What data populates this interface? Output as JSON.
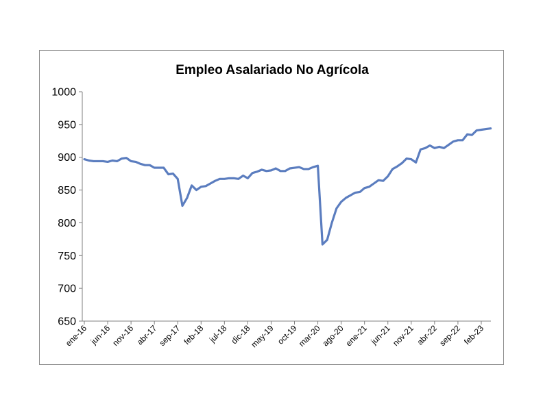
{
  "chart_data": {
    "type": "line",
    "title": "Empleo Asalariado No Agrícola",
    "xlabel": "",
    "ylabel": "",
    "ylim": [
      650,
      1000
    ],
    "yticks": [
      650,
      700,
      750,
      800,
      850,
      900,
      950,
      1000
    ],
    "grid": false,
    "legend": "none",
    "line_color": "#5b7dbf",
    "x_tick_labels": [
      "ene-16",
      "jun-16",
      "nov-16",
      "abr-17",
      "sep-17",
      "feb-18",
      "jul-18",
      "dic-18",
      "may-19",
      "oct-19",
      "mar-20",
      "ago-20",
      "ene-21",
      "jun-21",
      "nov-21",
      "abr-22",
      "sep-22",
      "feb-23"
    ],
    "x": [
      "ene-16",
      "feb-16",
      "mar-16",
      "abr-16",
      "may-16",
      "jun-16",
      "jul-16",
      "ago-16",
      "sep-16",
      "oct-16",
      "nov-16",
      "dic-16",
      "ene-17",
      "feb-17",
      "mar-17",
      "abr-17",
      "may-17",
      "jun-17",
      "jul-17",
      "ago-17",
      "sep-17",
      "oct-17",
      "nov-17",
      "dic-17",
      "ene-18",
      "feb-18",
      "mar-18",
      "abr-18",
      "may-18",
      "jun-18",
      "jul-18",
      "ago-18",
      "sep-18",
      "oct-18",
      "nov-18",
      "dic-18",
      "ene-19",
      "feb-19",
      "mar-19",
      "abr-19",
      "may-19",
      "jun-19",
      "jul-19",
      "ago-19",
      "sep-19",
      "oct-19",
      "nov-19",
      "dic-19",
      "ene-20",
      "feb-20",
      "mar-20",
      "abr-20",
      "may-20",
      "jun-20",
      "jul-20",
      "ago-20",
      "sep-20",
      "oct-20",
      "nov-20",
      "dic-20",
      "ene-21",
      "feb-21",
      "mar-21",
      "abr-21",
      "may-21",
      "jun-21",
      "jul-21",
      "ago-21",
      "sep-21",
      "oct-21",
      "nov-21",
      "dic-21",
      "ene-22",
      "feb-22",
      "mar-22",
      "abr-22",
      "may-22",
      "jun-22",
      "jul-22",
      "ago-22",
      "sep-22",
      "oct-22",
      "nov-22",
      "dic-22",
      "ene-23",
      "feb-23",
      "mar-23",
      "abr-23"
    ],
    "series": [
      {
        "values": [
          897,
          895,
          894,
          894,
          894,
          893,
          895,
          894,
          898,
          899,
          894,
          893,
          890,
          888,
          888,
          884,
          884,
          884,
          874,
          875,
          867,
          826,
          838,
          857,
          850,
          855,
          856,
          860,
          864,
          867,
          867,
          868,
          868,
          867,
          872,
          868,
          876,
          878,
          881,
          879,
          880,
          883,
          879,
          879,
          883,
          884,
          885,
          882,
          882,
          885,
          887,
          767,
          774,
          800,
          822,
          832,
          838,
          842,
          846,
          847,
          853,
          855,
          860,
          865,
          864,
          871,
          882,
          886,
          891,
          898,
          897,
          892,
          912,
          914,
          918,
          914,
          916,
          914,
          919,
          924,
          926,
          926,
          935,
          934,
          941,
          942,
          943,
          944
        ]
      }
    ]
  }
}
